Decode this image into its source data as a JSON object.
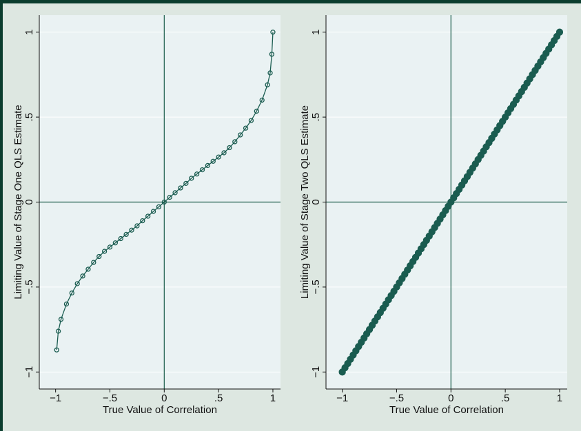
{
  "chart_data": [
    {
      "type": "line",
      "markers": true,
      "color": "#1a5c50",
      "x_label": "True Value of Correlation",
      "y_label": "Limiting Value of Stage One QLS Estimate",
      "x": [
        -0.99,
        -0.975,
        -0.95,
        -0.9,
        -0.85,
        -0.8,
        -0.75,
        -0.7,
        -0.65,
        -0.6,
        -0.55,
        -0.5,
        -0.45,
        -0.4,
        -0.35,
        -0.3,
        -0.25,
        -0.2,
        -0.15,
        -0.1,
        -0.05,
        0,
        0.05,
        0.1,
        0.15,
        0.2,
        0.25,
        0.3,
        0.35,
        0.4,
        0.45,
        0.5,
        0.55,
        0.6,
        0.65,
        0.7,
        0.75,
        0.8,
        0.85,
        0.9,
        0.95,
        0.975,
        0.99,
        1
      ],
      "values": [
        -0.87,
        -0.76,
        -0.69,
        -0.6,
        -0.535,
        -0.48,
        -0.435,
        -0.395,
        -0.355,
        -0.32,
        -0.29,
        -0.265,
        -0.24,
        -0.215,
        -0.19,
        -0.165,
        -0.14,
        -0.11,
        -0.083,
        -0.055,
        -0.028,
        0,
        0.028,
        0.055,
        0.083,
        0.11,
        0.14,
        0.165,
        0.19,
        0.215,
        0.24,
        0.265,
        0.29,
        0.32,
        0.355,
        0.395,
        0.435,
        0.48,
        0.535,
        0.6,
        0.69,
        0.76,
        0.87,
        1
      ],
      "xlim": [
        -1.15,
        1.07
      ],
      "ylim": [
        -1.1,
        1.1
      ],
      "xticks": [
        {
          "value": -1,
          "label": "−1"
        },
        {
          "value": -0.5,
          "label": "−.5"
        },
        0,
        {
          "value": 0.5,
          "label": ".5"
        },
        1
      ],
      "yticks": [
        {
          "value": -1,
          "label": "−1"
        },
        {
          "value": -0.5,
          "label": "−.5"
        },
        0,
        {
          "value": 0.5,
          "label": ".5"
        },
        1
      ],
      "grid": true,
      "xline": 0,
      "yline": 0
    },
    {
      "type": "scatter",
      "markers": true,
      "color": "#1a5c50",
      "x_label": "True Value of Correlation",
      "y_label": "Limiting Value of Stage Two QLS Estimate",
      "x": [
        -1,
        -0.975,
        -0.95,
        -0.925,
        -0.9,
        -0.875,
        -0.85,
        -0.825,
        -0.8,
        -0.775,
        -0.75,
        -0.725,
        -0.7,
        -0.675,
        -0.65,
        -0.625,
        -0.6,
        -0.575,
        -0.55,
        -0.525,
        -0.5,
        -0.475,
        -0.45,
        -0.425,
        -0.4,
        -0.375,
        -0.35,
        -0.325,
        -0.3,
        -0.275,
        -0.25,
        -0.225,
        -0.2,
        -0.175,
        -0.15,
        -0.125,
        -0.1,
        -0.075,
        -0.05,
        -0.025,
        0,
        0.025,
        0.05,
        0.075,
        0.1,
        0.125,
        0.15,
        0.175,
        0.2,
        0.225,
        0.25,
        0.275,
        0.3,
        0.325,
        0.35,
        0.375,
        0.4,
        0.425,
        0.45,
        0.475,
        0.5,
        0.525,
        0.55,
        0.575,
        0.6,
        0.625,
        0.65,
        0.675,
        0.7,
        0.725,
        0.75,
        0.775,
        0.8,
        0.825,
        0.85,
        0.875,
        0.9,
        0.925,
        0.95,
        0.975,
        1
      ],
      "values": [
        -1,
        -0.975,
        -0.95,
        -0.925,
        -0.9,
        -0.875,
        -0.85,
        -0.825,
        -0.8,
        -0.775,
        -0.75,
        -0.725,
        -0.7,
        -0.675,
        -0.65,
        -0.625,
        -0.6,
        -0.575,
        -0.55,
        -0.525,
        -0.5,
        -0.475,
        -0.45,
        -0.425,
        -0.4,
        -0.375,
        -0.35,
        -0.325,
        -0.3,
        -0.275,
        -0.25,
        -0.225,
        -0.2,
        -0.175,
        -0.15,
        -0.125,
        -0.1,
        -0.075,
        -0.05,
        -0.025,
        0,
        0.025,
        0.05,
        0.075,
        0.1,
        0.125,
        0.15,
        0.175,
        0.2,
        0.225,
        0.25,
        0.275,
        0.3,
        0.325,
        0.35,
        0.375,
        0.4,
        0.425,
        0.45,
        0.475,
        0.5,
        0.525,
        0.55,
        0.575,
        0.6,
        0.625,
        0.65,
        0.675,
        0.7,
        0.725,
        0.75,
        0.775,
        0.8,
        0.825,
        0.85,
        0.875,
        0.9,
        0.925,
        0.95,
        0.975,
        1
      ],
      "xlim": [
        -1.15,
        1.07
      ],
      "ylim": [
        -1.1,
        1.1
      ],
      "xticks": [
        {
          "value": -1,
          "label": "−1"
        },
        {
          "value": -0.5,
          "label": "−.5"
        },
        0,
        {
          "value": 0.5,
          "label": ".5"
        },
        1
      ],
      "yticks": [
        {
          "value": -1,
          "label": "−1"
        },
        {
          "value": -0.5,
          "label": "−.5"
        },
        0,
        {
          "value": 0.5,
          "label": ".5"
        },
        1
      ],
      "grid": true,
      "xline": 0,
      "yline": 0
    }
  ]
}
